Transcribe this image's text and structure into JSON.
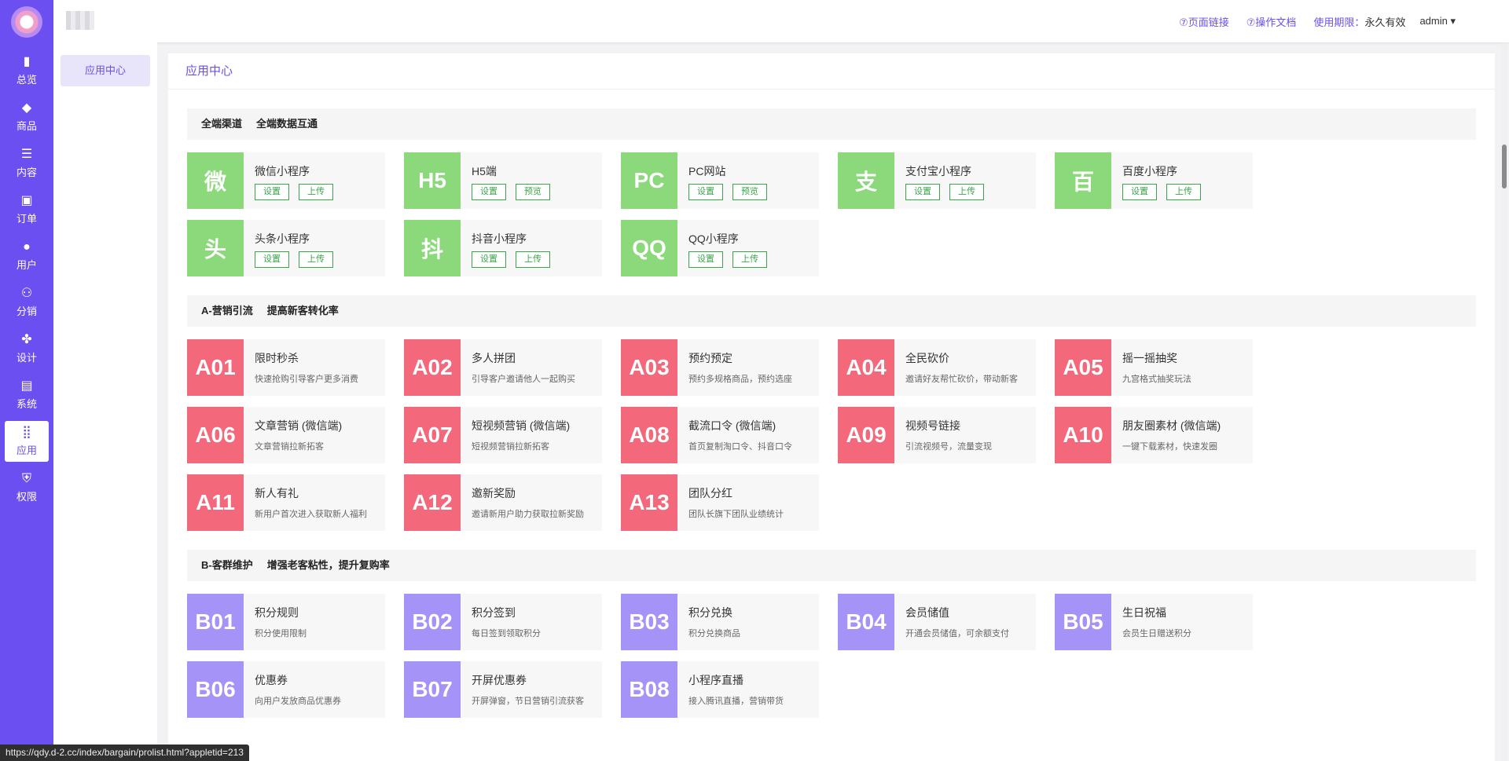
{
  "rail": {
    "items": [
      {
        "label": "总览",
        "icon": "bar-chart-icon",
        "glyph": "▮"
      },
      {
        "label": "商品",
        "icon": "bag-icon",
        "glyph": "◆"
      },
      {
        "label": "内容",
        "icon": "list-icon",
        "glyph": "☰"
      },
      {
        "label": "订单",
        "icon": "wallet-icon",
        "glyph": "▣"
      },
      {
        "label": "用户",
        "icon": "user-icon",
        "glyph": "●"
      },
      {
        "label": "分销",
        "icon": "users-icon",
        "glyph": "⚇"
      },
      {
        "label": "设计",
        "icon": "palette-icon",
        "glyph": "✤"
      },
      {
        "label": "系统",
        "icon": "store-icon",
        "glyph": "▤"
      },
      {
        "label": "应用",
        "icon": "apps-grid-icon",
        "glyph": "⣿",
        "active": true
      },
      {
        "label": "权限",
        "icon": "shield-icon",
        "glyph": "⛨"
      }
    ]
  },
  "subbar": {
    "item": "应用中心"
  },
  "topbar": {
    "page_link": "⑦页面链接",
    "docs_link": "⑦操作文档",
    "term_label": "使用期限：",
    "term_value": "永久有效",
    "user": "admin ▾"
  },
  "main": {
    "title": "应用中心",
    "sections": [
      {
        "heading": [
          "全端渠道",
          "全端数据互通"
        ],
        "color": "green",
        "cards": [
          {
            "badge": "微",
            "name": "微信小程序",
            "buttons": [
              "设置",
              "上传"
            ]
          },
          {
            "badge": "H5",
            "name": "H5端",
            "buttons": [
              "设置",
              "预览"
            ]
          },
          {
            "badge": "PC",
            "name": "PC网站",
            "buttons": [
              "设置",
              "预览"
            ]
          },
          {
            "badge": "支",
            "name": "支付宝小程序",
            "buttons": [
              "设置",
              "上传"
            ]
          },
          {
            "badge": "百",
            "name": "百度小程序",
            "buttons": [
              "设置",
              "上传"
            ]
          },
          {
            "badge": "头",
            "name": "头条小程序",
            "buttons": [
              "设置",
              "上传"
            ]
          },
          {
            "badge": "抖",
            "name": "抖音小程序",
            "buttons": [
              "设置",
              "上传"
            ]
          },
          {
            "badge": "QQ",
            "name": "QQ小程序",
            "buttons": [
              "设置",
              "上传"
            ]
          }
        ]
      },
      {
        "heading": [
          "A-营销引流",
          "提高新客转化率"
        ],
        "color": "red",
        "cards": [
          {
            "badge": "A01",
            "name": "限时秒杀",
            "desc": "快速抢购引导客户更多消费"
          },
          {
            "badge": "A02",
            "name": "多人拼团",
            "desc": "引导客户邀请他人一起购买"
          },
          {
            "badge": "A03",
            "name": "预约预定",
            "desc": "预约多规格商品，预约选座"
          },
          {
            "badge": "A04",
            "name": "全民砍价",
            "desc": "邀请好友帮忙砍价，带动新客"
          },
          {
            "badge": "A05",
            "name": "摇一摇抽奖",
            "desc": "九宫格式抽奖玩法"
          },
          {
            "badge": "A06",
            "name": "文章营销 (微信端)",
            "desc": "文章营销拉新拓客"
          },
          {
            "badge": "A07",
            "name": "短视频营销 (微信端)",
            "desc": "短视频营销拉新拓客"
          },
          {
            "badge": "A08",
            "name": "截流口令 (微信端)",
            "desc": "首页复制淘口令、抖音口令"
          },
          {
            "badge": "A09",
            "name": "视频号链接",
            "desc": "引流视频号，流量变现"
          },
          {
            "badge": "A10",
            "name": "朋友圈素材 (微信端)",
            "desc": "一键下载素材，快速发圈"
          },
          {
            "badge": "A11",
            "name": "新人有礼",
            "desc": "新用户首次进入获取新人福利"
          },
          {
            "badge": "A12",
            "name": "邀新奖励",
            "desc": "邀请新用户助力获取拉新奖励"
          },
          {
            "badge": "A13",
            "name": "团队分红",
            "desc": "团队长旗下团队业绩统计"
          }
        ]
      },
      {
        "heading": [
          "B-客群维护",
          "增强老客粘性，提升复购率"
        ],
        "color": "purple",
        "cards": [
          {
            "badge": "B01",
            "name": "积分规则",
            "desc": "积分使用限制"
          },
          {
            "badge": "B02",
            "name": "积分签到",
            "desc": "每日签到领取积分"
          },
          {
            "badge": "B03",
            "name": "积分兑换",
            "desc": "积分兑换商品"
          },
          {
            "badge": "B04",
            "name": "会员储值",
            "desc": "开通会员储值，可余额支付"
          },
          {
            "badge": "B05",
            "name": "生日祝福",
            "desc": "会员生日赠送积分"
          },
          {
            "badge": "B06",
            "name": "优惠券",
            "desc": "向用户发放商品优惠券"
          },
          {
            "badge": "B07",
            "name": "开屏优惠券",
            "desc": "开屏弹窗，节日营销引流获客"
          },
          {
            "badge": "B08",
            "name": "小程序直播",
            "desc": "接入腾讯直播，营销带货"
          }
        ]
      }
    ]
  },
  "status_url": "https://qdy.d-2.cc/index/bargain/prolist.html?appletid=213"
}
